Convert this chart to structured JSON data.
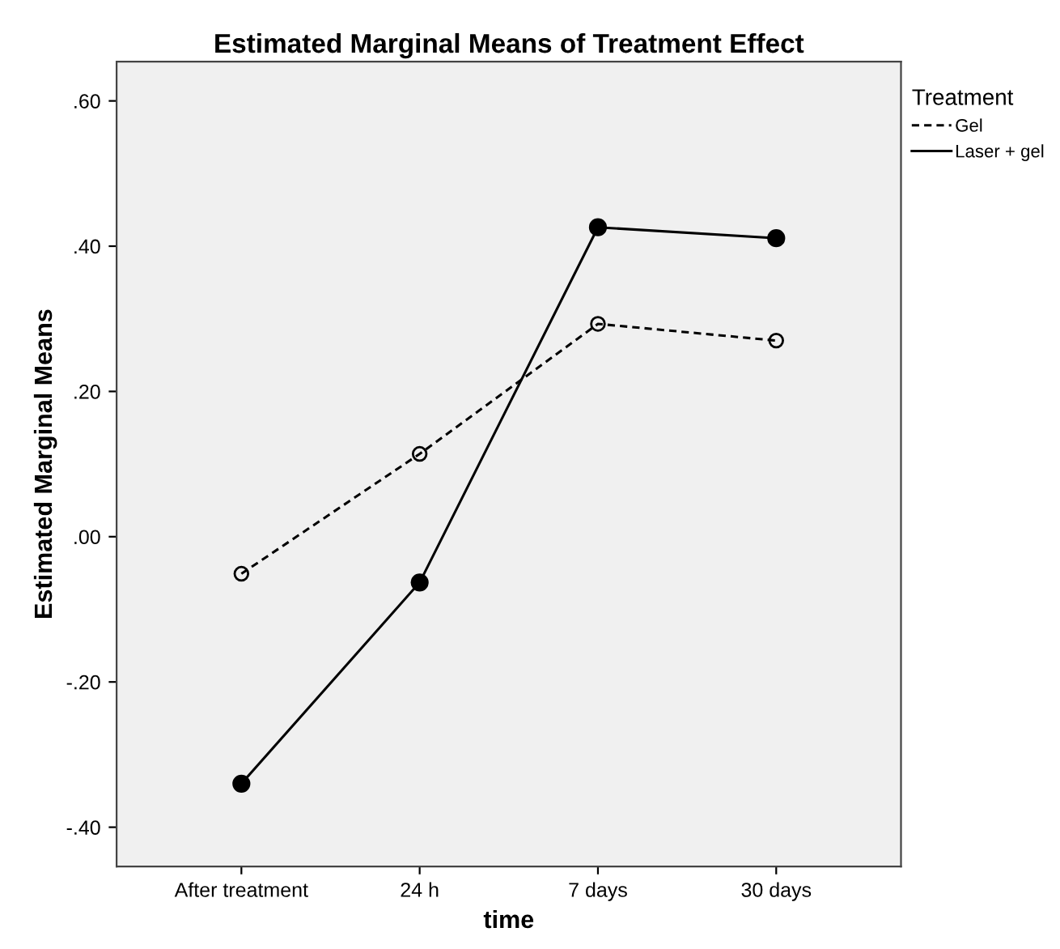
{
  "chart_data": {
    "type": "line",
    "title": "Estimated Marginal Means of Treatment Effect",
    "xlabel": "time",
    "ylabel": "Estimated Marginal Means",
    "legend_title": "Treatment",
    "categories": [
      "After treatment",
      "24 h",
      "7 days",
      "30 days"
    ],
    "series": [
      {
        "name": "Gel",
        "color": "#000000",
        "values": [
          -0.051,
          0.114,
          0.293,
          0.27
        ],
        "line_style": "dashed",
        "marker": "circle"
      },
      {
        "name": "Laser + gel",
        "color": "#000000",
        "values": [
          -0.34,
          -0.063,
          0.426,
          0.411
        ],
        "line_style": "solid",
        "marker": "circle"
      }
    ],
    "ylim": [
      -0.454,
      0.654
    ],
    "yticks": [
      {
        "value": -0.4,
        "label": "-.40"
      },
      {
        "value": -0.2,
        "label": "-.20"
      },
      {
        "value": 0,
        "label": ".00"
      },
      {
        "value": 0.2,
        "label": ".20"
      },
      {
        "value": 0.4,
        "label": ".40"
      },
      {
        "value": 0.6,
        "label": ".60"
      }
    ],
    "grid": false,
    "legend": "top right"
  }
}
